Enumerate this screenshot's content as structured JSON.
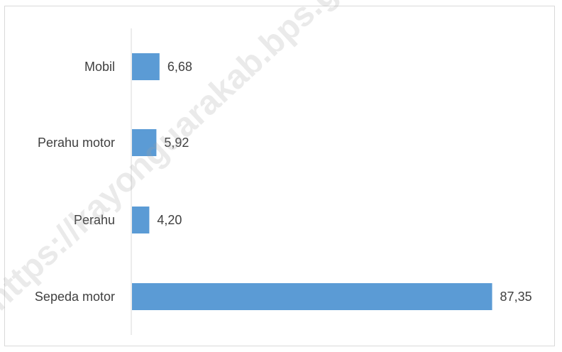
{
  "watermark": "https://kayonguarakab.bps.go.id",
  "chart_data": {
    "type": "bar",
    "orientation": "horizontal",
    "categories": [
      "Mobil",
      "Perahu motor",
      "Perahu",
      "Sepeda motor"
    ],
    "values": [
      6.68,
      5.92,
      4.2,
      87.35
    ],
    "value_labels": [
      "6,68",
      "5,92",
      "4,20",
      "87,35"
    ],
    "title": "",
    "xlabel": "",
    "ylabel": "",
    "xlim": [
      0,
      95
    ],
    "grid": false,
    "legend": "none",
    "bar_color": "#5b9bd5",
    "axis_color": "#d9d9d9",
    "text_color": "#404040"
  }
}
